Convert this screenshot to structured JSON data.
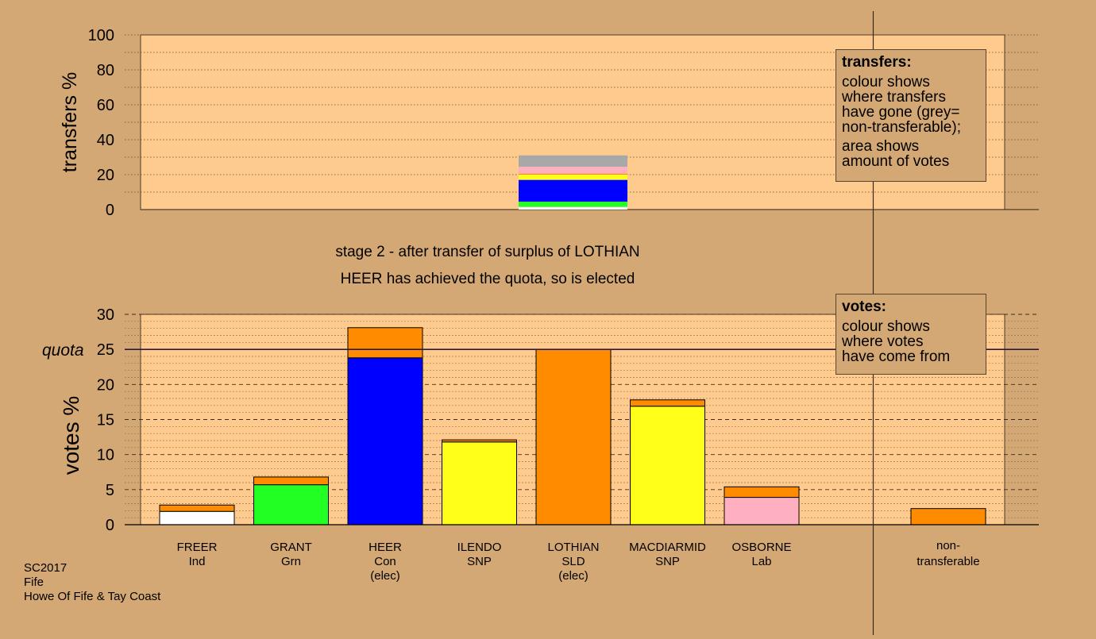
{
  "colors": {
    "background": "#d4a874",
    "plot_bg": "#ffca8e",
    "Ind": "#ffffff",
    "Grn": "#22ff22",
    "Con": "#0000ff",
    "SNP": "#ffff19",
    "SLD": "#ff8c00",
    "Lab": "#ffb0c0",
    "nontransferable": "#a8a8a8"
  },
  "stage": {
    "line1": "stage 2 - after transfer of surplus of LOTHIAN",
    "line2": "HEER has achieved the quota, so is elected"
  },
  "transfers_legend": {
    "title": "transfers:",
    "text1": "colour shows\nwhere transfers\nhave gone (grey=\nnon-transferable);",
    "text2": "area shows\namount of votes"
  },
  "votes_legend": {
    "title": "votes:",
    "text1": "colour shows\nwhere votes\nhave come from"
  },
  "footer": {
    "line1": "SC2017",
    "line2": "Fife",
    "line3": "Howe Of Fife & Tay Coast"
  },
  "chart_data": [
    {
      "type": "bar",
      "ylabel": "transfers %",
      "ylim": [
        0,
        100
      ],
      "yticks": [
        0,
        20,
        40,
        60,
        80,
        100
      ],
      "categories": [
        "LOTHIAN"
      ],
      "stack_bottom_to_top": [
        {
          "party": "Ind",
          "value": 1.5
        },
        {
          "party": "Grn",
          "value": 3.0
        },
        {
          "party": "Con",
          "value": 12.5
        },
        {
          "party": "SNP",
          "value": 2.0
        },
        {
          "party": "SNP",
          "value": 1.0
        },
        {
          "party": "SLD",
          "value": 0.5
        },
        {
          "party": "Lab",
          "value": 4.0
        },
        {
          "party": "nontransferable",
          "value": 6.5
        }
      ],
      "grid": "dotted"
    },
    {
      "type": "bar",
      "stacked": true,
      "ylabel": "votes %",
      "ylim": [
        0,
        30
      ],
      "yticks": [
        0,
        5,
        10,
        15,
        20,
        25,
        30
      ],
      "quota": {
        "label": "quota",
        "value": 25
      },
      "candidates": [
        {
          "name": "FREER",
          "party": "Ind",
          "status": "",
          "base": 1.9,
          "transfer": 0.9
        },
        {
          "name": "GRANT",
          "party": "Grn",
          "status": "",
          "base": 5.7,
          "transfer": 1.1
        },
        {
          "name": "HEER",
          "party": "Con",
          "status": "(elec)",
          "base": 23.8,
          "transfer": 4.3
        },
        {
          "name": "ILENDO",
          "party": "SNP",
          "status": "",
          "base": 11.8,
          "transfer": 0.3
        },
        {
          "name": "LOTHIAN",
          "party": "SLD",
          "status": "(elec)",
          "base": 25.0,
          "transfer": 0
        },
        {
          "name": "MACDIARMID",
          "party": "SNP",
          "status": "",
          "base": 16.9,
          "transfer": 0.9
        },
        {
          "name": "OSBORNE",
          "party": "Lab",
          "status": "",
          "base": 3.9,
          "transfer": 1.5
        }
      ],
      "nontransferable": {
        "label1": "non-",
        "label2": "transferable",
        "value": 2.3
      },
      "grid": "dashed"
    }
  ]
}
